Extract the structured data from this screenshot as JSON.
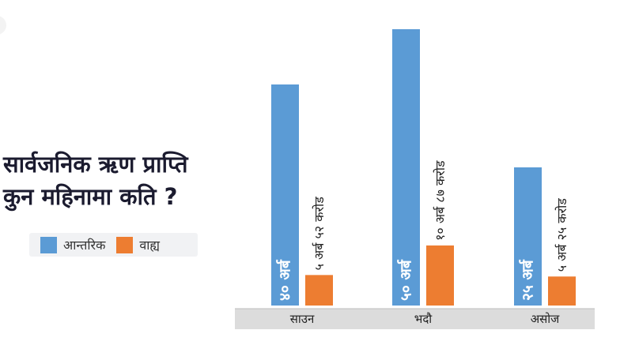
{
  "title": {
    "line1": "सार्वजनिक ऋण प्राप्ति",
    "line2": "कुन महिनामा कति ?"
  },
  "colors": {
    "internal": "#5b9bd5",
    "external": "#ed7d31",
    "title": "#1b1b2f",
    "axis_band": "#dcdcdc"
  },
  "chart_data": {
    "type": "bar",
    "categories": [
      "साउन",
      "भदौ",
      "असोज"
    ],
    "series": [
      {
        "name": "आन्तरिक",
        "values": [
          40,
          50,
          25
        ],
        "labels": [
          "४० अर्ब",
          "५० अर्ब",
          "२५ अर्ब"
        ]
      },
      {
        "name": "वाह्य",
        "values": [
          5.52,
          10.87,
          5.25
        ],
        "labels": [
          "५ अर्ब ५२ करोड",
          "१० अर्ब ८७ करोड",
          "५ अर्ब २५ करोड"
        ]
      }
    ],
    "unit": "अर्ब",
    "ylim": [
      0,
      50
    ],
    "legend": "left"
  }
}
